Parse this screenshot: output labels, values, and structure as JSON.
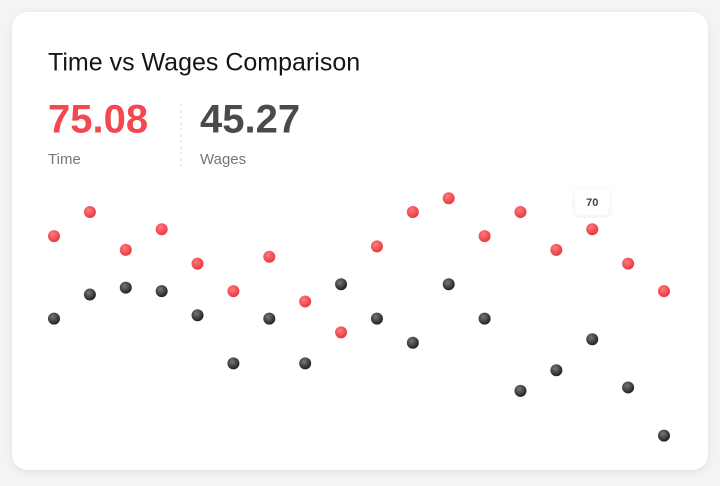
{
  "chart_data": {
    "type": "lollipop",
    "title": "Time vs Wages Comparison",
    "categories": [
      null,
      null,
      null,
      null,
      null,
      null,
      null,
      null,
      null,
      null,
      null,
      null,
      null,
      null,
      null,
      null,
      null,
      null
    ],
    "series": [
      {
        "name": "Time",
        "color": "#f4474e",
        "summary": 75.08,
        "values": [
          68,
          75,
          64,
          70,
          60,
          52,
          62,
          49,
          40,
          65,
          75,
          79,
          68,
          75,
          64,
          70,
          60,
          52
        ]
      },
      {
        "name": "Wages",
        "color": "#2b2b2b",
        "summary": 45.27,
        "values": [
          44,
          51,
          53,
          52,
          45,
          31,
          44,
          31,
          54,
          44,
          37,
          54,
          44,
          23,
          29,
          38,
          24,
          10
        ]
      }
    ],
    "ylim": [
      0,
      100
    ],
    "tooltip": {
      "series": 0,
      "index": 15
    }
  }
}
